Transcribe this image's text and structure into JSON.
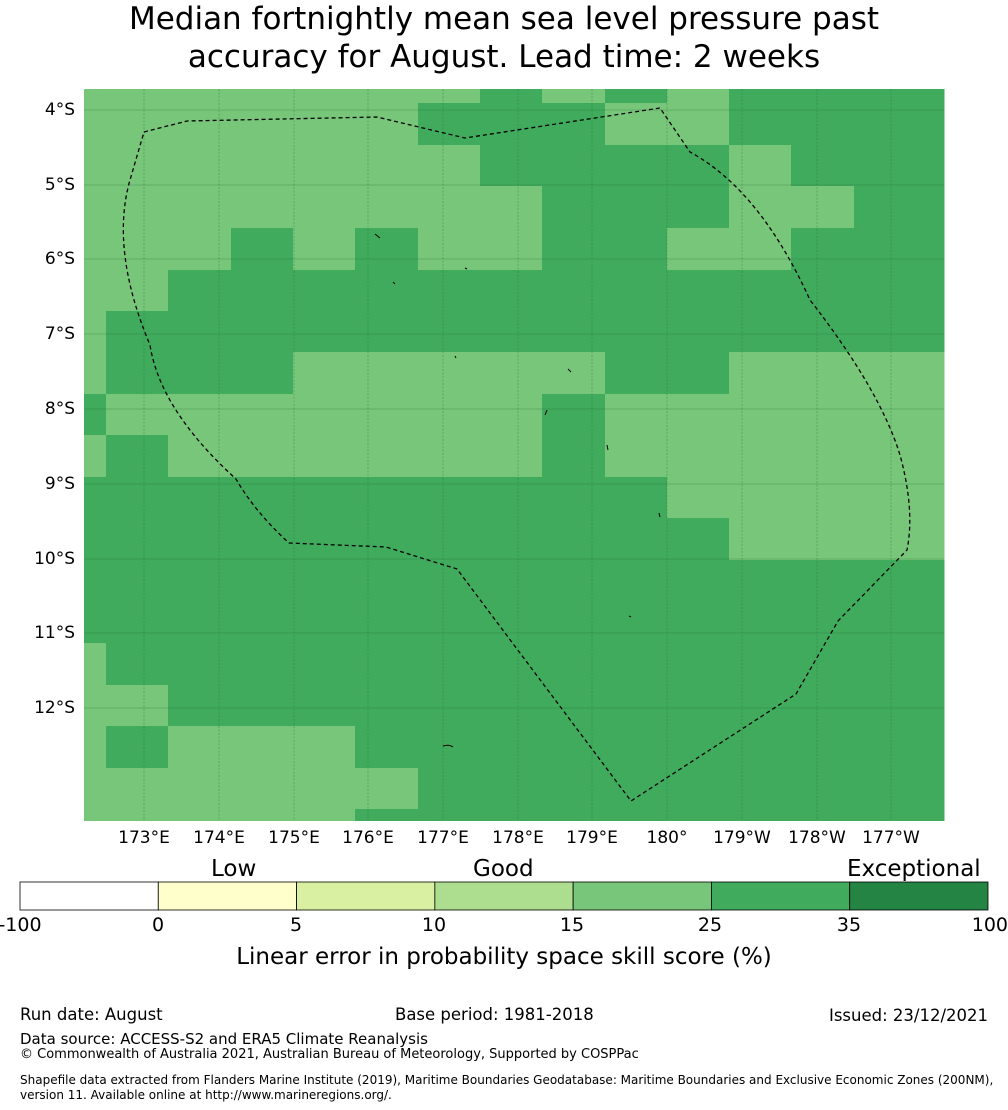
{
  "title": {
    "line1": "Median fortnightly mean sea level pressure past",
    "line2": "accuracy for August. Lead time: 2 weeks"
  },
  "map": {
    "lat_labels": [
      "4°S",
      "5°S",
      "6°S",
      "7°S",
      "8°S",
      "9°S",
      "10°S",
      "11°S",
      "12°S"
    ],
    "lon_labels": [
      "173°E",
      "174°E",
      "175°E",
      "176°E",
      "177°E",
      "178°E",
      "179°E",
      "180°",
      "179°W",
      "178°W",
      "177°W"
    ],
    "grid_values": [
      [
        20,
        20,
        20,
        20,
        20,
        20,
        20,
        30,
        20,
        30,
        20,
        30,
        30,
        30
      ],
      [
        20,
        20,
        20,
        20,
        20,
        20,
        30,
        30,
        30,
        20,
        20,
        30,
        30,
        30
      ],
      [
        20,
        20,
        20,
        20,
        20,
        20,
        20,
        30,
        30,
        30,
        30,
        20,
        30,
        30
      ],
      [
        20,
        20,
        20,
        20,
        20,
        20,
        20,
        20,
        30,
        30,
        30,
        20,
        20,
        30
      ],
      [
        20,
        20,
        20,
        30,
        20,
        30,
        20,
        20,
        30,
        30,
        20,
        20,
        30,
        30
      ],
      [
        20,
        20,
        30,
        30,
        30,
        30,
        30,
        30,
        30,
        30,
        30,
        30,
        30,
        30
      ],
      [
        20,
        30,
        30,
        30,
        30,
        30,
        30,
        30,
        30,
        30,
        30,
        30,
        30,
        30
      ],
      [
        20,
        30,
        30,
        30,
        20,
        20,
        20,
        20,
        20,
        30,
        30,
        20,
        20,
        20
      ],
      [
        30,
        20,
        20,
        20,
        20,
        20,
        20,
        20,
        30,
        20,
        20,
        20,
        20,
        20
      ],
      [
        20,
        30,
        20,
        20,
        20,
        20,
        20,
        20,
        30,
        20,
        20,
        20,
        20,
        20
      ],
      [
        30,
        30,
        30,
        30,
        30,
        30,
        30,
        30,
        30,
        30,
        20,
        20,
        20,
        20
      ],
      [
        30,
        30,
        30,
        30,
        30,
        30,
        30,
        30,
        30,
        30,
        30,
        20,
        20,
        20
      ],
      [
        30,
        30,
        30,
        30,
        30,
        30,
        30,
        30,
        30,
        30,
        30,
        30,
        30,
        30
      ],
      [
        30,
        30,
        30,
        30,
        30,
        30,
        30,
        30,
        30,
        30,
        30,
        30,
        30,
        30
      ],
      [
        20,
        30,
        30,
        30,
        30,
        30,
        30,
        30,
        30,
        30,
        30,
        30,
        30,
        30
      ],
      [
        20,
        20,
        30,
        30,
        30,
        30,
        30,
        30,
        30,
        30,
        30,
        30,
        30,
        30
      ],
      [
        20,
        30,
        20,
        20,
        20,
        30,
        30,
        30,
        30,
        30,
        30,
        30,
        30,
        30
      ],
      [
        20,
        20,
        20,
        20,
        20,
        20,
        30,
        30,
        30,
        30,
        30,
        30,
        30,
        30
      ]
    ]
  },
  "colorbar": {
    "categories": [
      "Low",
      "Good",
      "Exceptional"
    ],
    "ticks": [
      "-100",
      "0",
      "5",
      "10",
      "15",
      "25",
      "35",
      "100"
    ],
    "bins": [
      {
        "from": -100,
        "to": 0,
        "color": "#ffffff"
      },
      {
        "from": 0,
        "to": 5,
        "color": "#ffffcc"
      },
      {
        "from": 5,
        "to": 10,
        "color": "#d9f0a3"
      },
      {
        "from": 10,
        "to": 15,
        "color": "#addd8e"
      },
      {
        "from": 15,
        "to": 25,
        "color": "#78c679"
      },
      {
        "from": 25,
        "to": 35,
        "color": "#41ab5d"
      },
      {
        "from": 35,
        "to": 100,
        "color": "#238443"
      }
    ],
    "label": "Linear error in probability space skill score (%)"
  },
  "footer": {
    "run_date": "Run date: August",
    "base_period": "Base period: 1981-2018",
    "issued": "Issued: 23/12/2021",
    "data_source": "Data source: ACCESS-S2 and ERA5 Climate Reanalysis",
    "copyright": "© Commonwealth of Australia 2021, Australian Bureau of Meteorology, Supported by COSPPac",
    "shapefile_line1": "Shapefile data extracted from Flanders Marine Institute (2019), Maritime Boundaries Geodatabase: Maritime Boundaries and Exclusive Economic Zones (200NM),",
    "shapefile_line2": "version 11. Available online at http://www.marineregions.org/."
  }
}
